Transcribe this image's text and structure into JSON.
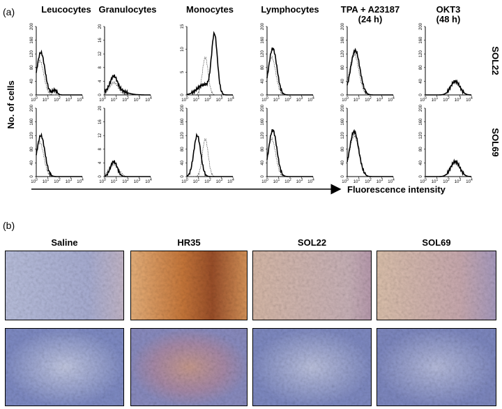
{
  "panel_a": {
    "label": "(a)",
    "y_axis_label": "No. of cells",
    "x_axis_label": "Fluorescence intensity",
    "columns": [
      [
        "Leucocytes"
      ],
      [
        "Granulocytes"
      ],
      [
        "Monocytes"
      ],
      [
        "Lymphocytes"
      ],
      [
        "TPA + A23187",
        "(24 h)"
      ],
      [
        "OKT3",
        "(48 h)"
      ]
    ],
    "rows": [
      {
        "name": "SOL22",
        "yticks": [
          [
            0,
            40,
            80,
            120,
            160,
            200
          ],
          [
            0,
            4,
            8,
            12,
            16,
            20
          ],
          [
            0,
            5,
            10,
            15
          ],
          [
            0,
            40,
            80,
            120,
            160,
            200
          ],
          [
            0,
            40,
            80,
            120,
            160,
            200
          ],
          [
            0,
            40,
            80,
            120,
            160,
            200
          ]
        ]
      },
      {
        "name": "SOL69",
        "yticks": [
          [
            0,
            40,
            80,
            120,
            160,
            200
          ],
          [
            0,
            4,
            8,
            12,
            16,
            20
          ],
          [
            0,
            40,
            80,
            120,
            160,
            200
          ],
          [
            0,
            40,
            80,
            120,
            160,
            200
          ],
          [
            0,
            40,
            80,
            120,
            160,
            200
          ],
          [
            0,
            40,
            80,
            120,
            160,
            200
          ]
        ]
      }
    ],
    "xtick_base": "10",
    "xtick_exponents": [
      "0",
      "1",
      "2",
      "3",
      "4"
    ]
  },
  "panel_b": {
    "label": "(b)",
    "columns": [
      "Saline",
      "HR35",
      "SOL22",
      "SOL69"
    ]
  }
}
